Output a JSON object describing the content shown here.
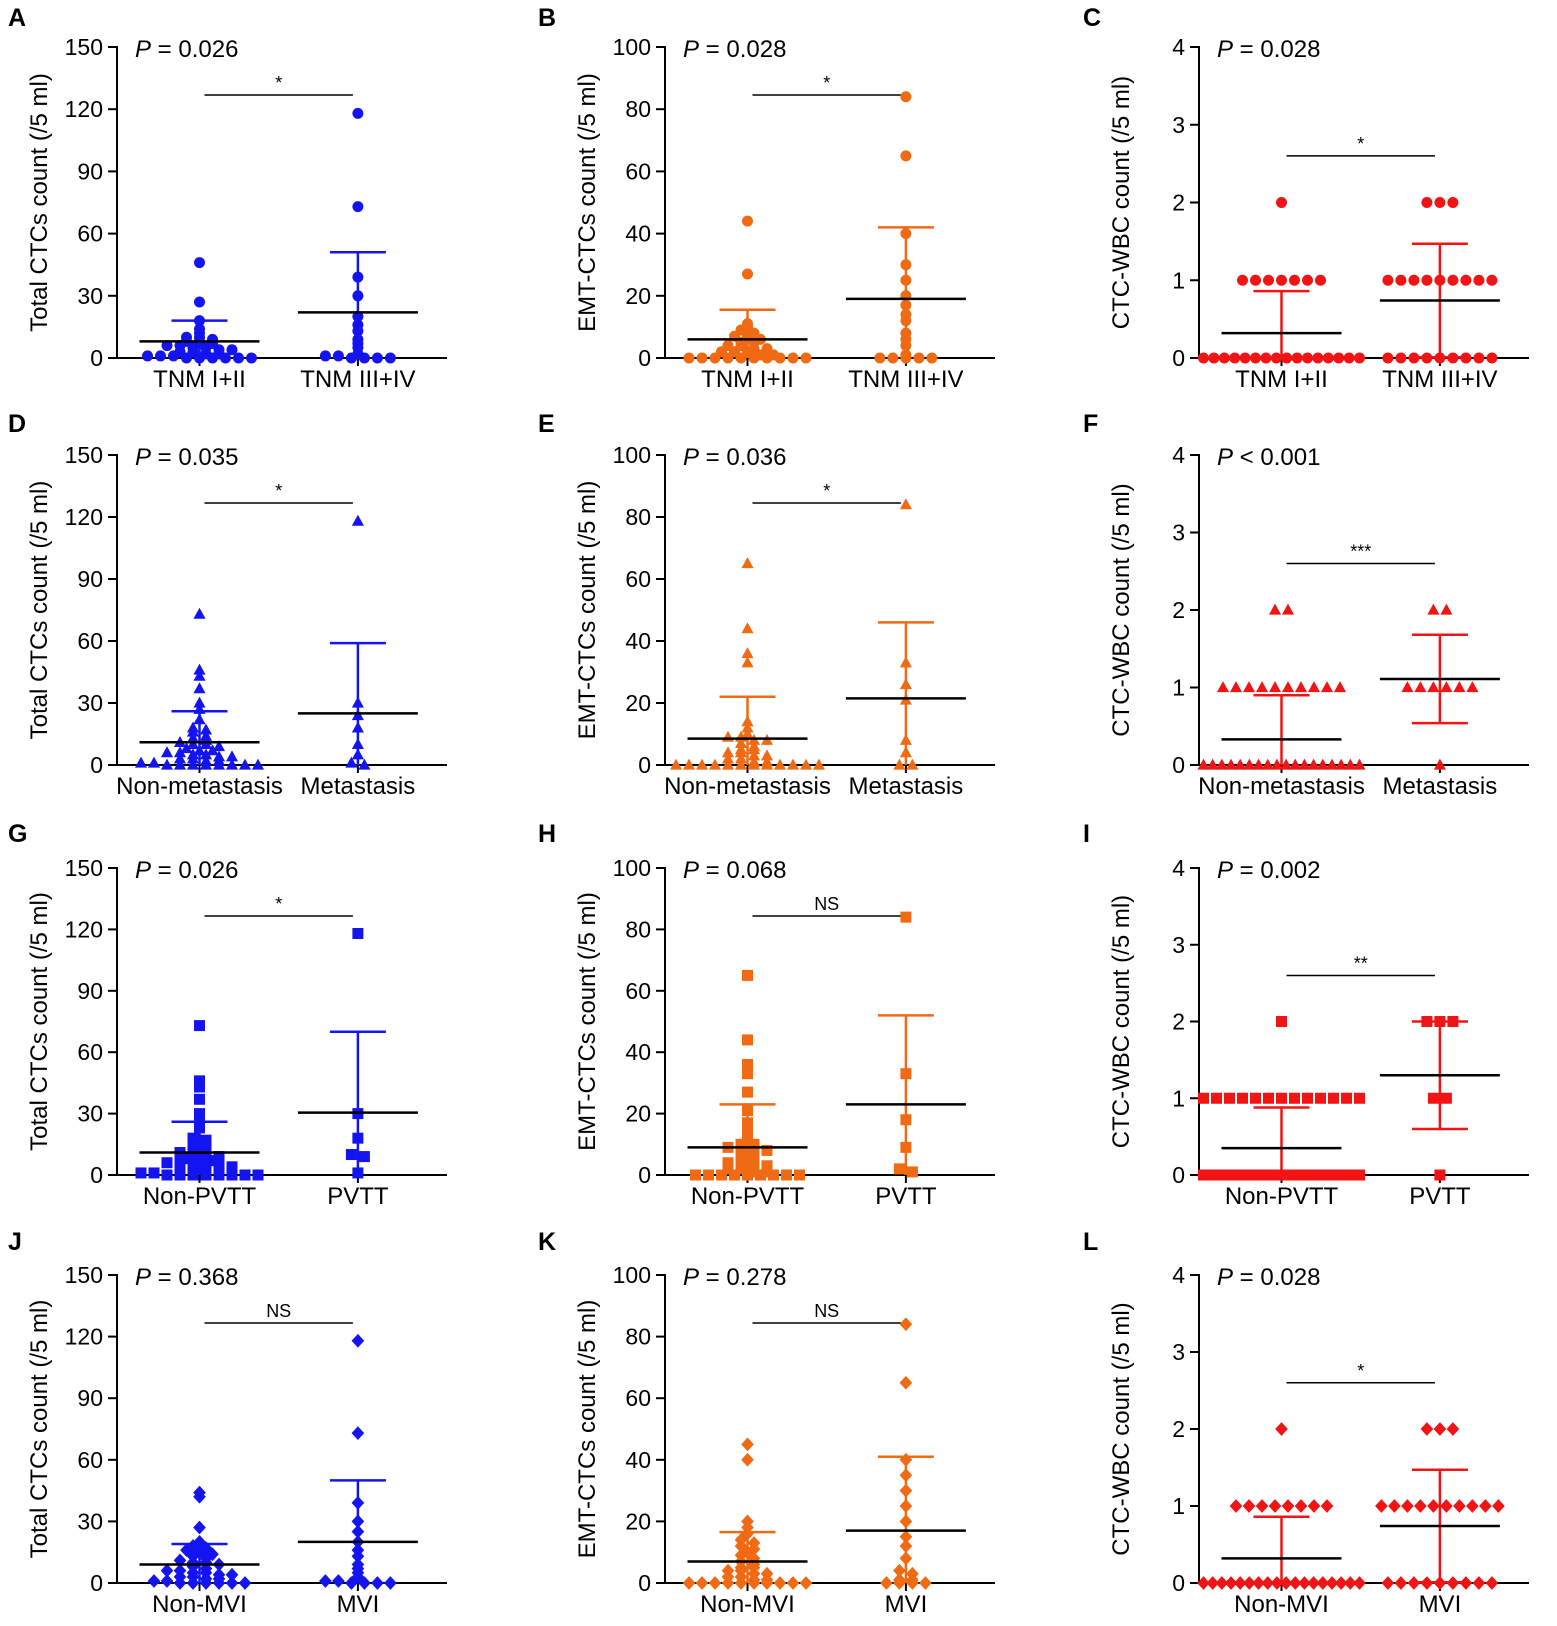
{
  "figure": "Scatter dot plots of CTC counts by clinical group",
  "chart_data": [
    {
      "id": "A",
      "type": "scatter",
      "letter": "A",
      "ylabel": "Total CTCs count (/5 ml)",
      "ylim": [
        0,
        150
      ],
      "yticks": [
        "0",
        "30",
        "60",
        "90",
        "120",
        "150"
      ],
      "color": "#1414f0",
      "marker": "circle",
      "p_value": "P = 0.026",
      "p_prefix": "P",
      "p_rest": " = 0.026",
      "significance": "*",
      "categories": [
        "TNM I+II",
        "TNM III+IV"
      ],
      "groups": [
        {
          "name": "TNM I+II",
          "mean": 8,
          "sd_upper": 18,
          "points": [
            46,
            27,
            18,
            14,
            12,
            10,
            10,
            9,
            8,
            8,
            7,
            6,
            6,
            5,
            5,
            4,
            4,
            3,
            3,
            2,
            2,
            1,
            1,
            1,
            0,
            0,
            0,
            0,
            0,
            0
          ]
        },
        {
          "name": "TNM III+IV",
          "mean": 22,
          "sd_upper": 51,
          "points": [
            118,
            73,
            39,
            30,
            20,
            16,
            13,
            9,
            7,
            5,
            2,
            1,
            1,
            0,
            0,
            0,
            0
          ]
        }
      ]
    },
    {
      "id": "B",
      "type": "scatter",
      "letter": "B",
      "ylabel": "EMT-CTCs count (/5 ml)",
      "ylim": [
        0,
        100
      ],
      "yticks": [
        "0",
        "20",
        "40",
        "60",
        "80",
        "100"
      ],
      "color": "#f06a14",
      "marker": "circle",
      "p_value": "P = 0.028",
      "p_prefix": "P",
      "p_rest": " = 0.028",
      "significance": "*",
      "categories": [
        "TNM I+II",
        "TNM III+IV"
      ],
      "groups": [
        {
          "name": "TNM I+II",
          "mean": 6,
          "sd_upper": 15.5,
          "points": [
            44,
            27,
            11,
            10,
            9,
            8,
            7,
            7,
            6,
            5,
            5,
            4,
            4,
            3,
            3,
            2,
            2,
            2,
            1,
            1,
            0,
            0,
            0,
            0,
            0,
            0,
            0,
            0,
            0,
            0
          ]
        },
        {
          "name": "TNM III+IV",
          "mean": 19,
          "sd_upper": 42,
          "points": [
            84,
            65,
            40,
            30,
            25,
            20,
            17,
            14,
            12,
            8,
            6,
            4,
            1,
            0,
            0,
            0,
            0,
            0
          ]
        }
      ]
    },
    {
      "id": "C",
      "type": "scatter",
      "letter": "C",
      "ylabel": "CTC-WBC count (/5 ml)",
      "ylim": [
        0,
        4
      ],
      "yticks": [
        "0",
        "1",
        "2",
        "3",
        "4"
      ],
      "color": "#f01414",
      "marker": "circle",
      "p_value": "P = 0.028",
      "p_prefix": "P",
      "p_rest": " = 0.028",
      "significance": "*",
      "categories": [
        "TNM I+II",
        "TNM III+IV"
      ],
      "groups": [
        {
          "name": "TNM I+II",
          "mean": 0.32,
          "sd_upper": 0.86,
          "points": [
            2,
            1,
            1,
            1,
            1,
            1,
            1,
            1,
            0,
            0,
            0,
            0,
            0,
            0,
            0,
            0,
            0,
            0,
            0,
            0,
            0,
            0,
            0,
            0
          ]
        },
        {
          "name": "TNM III+IV",
          "mean": 0.74,
          "sd_upper": 1.47,
          "points": [
            2,
            2,
            2,
            1,
            1,
            1,
            1,
            1,
            1,
            1,
            1,
            1,
            0,
            0,
            0,
            0,
            0,
            0,
            0,
            0,
            0
          ]
        }
      ]
    },
    {
      "id": "D",
      "type": "scatter",
      "letter": "D",
      "ylabel": "Total CTCs count (/5 ml)",
      "ylim": [
        0,
        150
      ],
      "yticks": [
        "0",
        "30",
        "60",
        "90",
        "120",
        "150"
      ],
      "color": "#1414f0",
      "marker": "triangle",
      "p_value": "P = 0.035",
      "p_prefix": "P",
      "p_rest": " = 0.035",
      "significance": "*",
      "categories": [
        "Non-metastasis",
        "Metastasis"
      ],
      "groups": [
        {
          "name": "Non-metastasis",
          "mean": 11,
          "sd_upper": 26,
          "points": [
            73,
            46,
            43,
            37,
            30,
            27,
            22,
            18,
            17,
            16,
            14,
            13,
            12,
            11,
            10,
            10,
            9,
            8,
            7,
            7,
            6,
            6,
            5,
            5,
            4,
            4,
            3,
            3,
            2,
            2,
            1,
            1,
            0,
            0,
            0,
            0,
            0,
            0,
            0,
            0
          ]
        },
        {
          "name": "Metastasis",
          "mean": 25,
          "sd_upper": 59,
          "points": [
            118,
            30,
            24,
            18,
            10,
            5,
            1,
            0
          ]
        }
      ]
    },
    {
      "id": "E",
      "type": "scatter",
      "letter": "E",
      "ylabel": "EMT-CTCs count (/5 ml)",
      "ylim": [
        0,
        100
      ],
      "yticks": [
        "0",
        "20",
        "40",
        "60",
        "80",
        "100"
      ],
      "color": "#f06a14",
      "marker": "triangle",
      "p_value": "P = 0.036",
      "p_prefix": "P",
      "p_rest": " = 0.036",
      "significance": "*",
      "categories": [
        "Non-metastasis",
        "Metastasis"
      ],
      "groups": [
        {
          "name": "Non-metastasis",
          "mean": 8.5,
          "sd_upper": 22,
          "points": [
            65,
            44,
            36,
            33,
            14,
            12,
            10,
            9,
            9,
            8,
            8,
            7,
            6,
            5,
            5,
            4,
            4,
            3,
            3,
            2,
            2,
            1,
            1,
            0,
            0,
            0,
            0,
            0,
            0,
            0,
            0,
            0,
            0,
            0,
            0
          ]
        },
        {
          "name": "Metastasis",
          "mean": 21.5,
          "sd_upper": 46,
          "points": [
            84,
            33,
            26,
            21,
            8,
            4,
            0,
            0
          ]
        }
      ]
    },
    {
      "id": "F",
      "type": "scatter",
      "letter": "F",
      "ylabel": "CTC-WBC count (/5 ml)",
      "ylim": [
        0,
        4
      ],
      "yticks": [
        "0",
        "1",
        "2",
        "3",
        "4"
      ],
      "color": "#f01414",
      "marker": "triangle",
      "p_value": "P < 0.001",
      "p_prefix": "P",
      "p_rest": " < 0.001",
      "significance": "***",
      "categories": [
        "Non-metastasis",
        "Metastasis"
      ],
      "groups": [
        {
          "name": "Non-metastasis",
          "mean": 0.33,
          "sd_upper": 0.9,
          "points": [
            2,
            2,
            1,
            1,
            1,
            1,
            1,
            1,
            1,
            1,
            1,
            1,
            0,
            0,
            0,
            0,
            0,
            0,
            0,
            0,
            0,
            0,
            0,
            0,
            0,
            0,
            0,
            0,
            0,
            0
          ]
        },
        {
          "name": "Metastasis",
          "mean": 1.11,
          "sd_upper": 1.68,
          "points": [
            2,
            2,
            1,
            1,
            1,
            1,
            1,
            1,
            0
          ]
        }
      ]
    },
    {
      "id": "G",
      "type": "scatter",
      "letter": "G",
      "ylabel": "Total CTCs count (/5 ml)",
      "ylim": [
        0,
        150
      ],
      "yticks": [
        "0",
        "30",
        "60",
        "90",
        "120",
        "150"
      ],
      "color": "#1414f0",
      "marker": "square",
      "p_value": "P = 0.026",
      "p_prefix": "P",
      "p_rest": " = 0.026",
      "significance": "*",
      "categories": [
        "Non-PVTT",
        "PVTT"
      ],
      "groups": [
        {
          "name": "Non-PVTT",
          "mean": 11,
          "sd_upper": 26,
          "points": [
            73,
            46,
            43,
            37,
            30,
            27,
            23,
            18,
            17,
            16,
            14,
            13,
            12,
            11,
            10,
            10,
            9,
            8,
            7,
            7,
            6,
            6,
            5,
            5,
            4,
            4,
            3,
            3,
            2,
            2,
            1,
            1,
            0,
            0,
            0,
            0,
            0,
            0,
            0,
            0
          ]
        },
        {
          "name": "PVTT",
          "mean": 30.5,
          "sd_upper": 70,
          "points": [
            118,
            30,
            18,
            10,
            9,
            1
          ]
        }
      ]
    },
    {
      "id": "H",
      "type": "scatter",
      "letter": "H",
      "ylabel": "EMT-CTCs count (/5 ml)",
      "ylim": [
        0,
        100
      ],
      "yticks": [
        "0",
        "20",
        "40",
        "60",
        "80",
        "100"
      ],
      "color": "#f06a14",
      "marker": "square",
      "p_value": "P = 0.068",
      "p_prefix": "P",
      "p_rest": " = 0.068",
      "significance": "NS",
      "categories": [
        "Non-PVTT",
        "PVTT"
      ],
      "groups": [
        {
          "name": "Non-PVTT",
          "mean": 9,
          "sd_upper": 23,
          "points": [
            65,
            44,
            36,
            33,
            27,
            21,
            17,
            14,
            12,
            10,
            10,
            9,
            9,
            8,
            8,
            7,
            6,
            5,
            5,
            4,
            4,
            3,
            3,
            2,
            2,
            1,
            1,
            0,
            0,
            0,
            0,
            0,
            0,
            0,
            0,
            0
          ]
        },
        {
          "name": "PVTT",
          "mean": 23,
          "sd_upper": 52,
          "points": [
            84,
            33,
            18,
            9,
            2,
            1
          ]
        }
      ]
    },
    {
      "id": "I",
      "type": "scatter",
      "letter": "I",
      "ylabel": "CTC-WBC count (/5 ml)",
      "ylim": [
        0,
        4
      ],
      "yticks": [
        "0",
        "1",
        "2",
        "3",
        "4"
      ],
      "color": "#f01414",
      "marker": "square",
      "p_value": "P = 0.002",
      "p_prefix": "P",
      "p_rest": " = 0.002",
      "significance": "**",
      "categories": [
        "Non-PVTT",
        "PVTT"
      ],
      "groups": [
        {
          "name": "Non-PVTT",
          "mean": 0.35,
          "sd_upper": 0.88,
          "points": [
            2,
            1,
            1,
            1,
            1,
            1,
            1,
            1,
            1,
            1,
            1,
            1,
            1,
            1,
            0,
            0,
            0,
            0,
            0,
            0,
            0,
            0,
            0,
            0,
            0,
            0,
            0,
            0,
            0,
            0,
            0,
            0,
            0,
            0,
            0
          ]
        },
        {
          "name": "PVTT",
          "mean": 1.3,
          "sd_upper": 2.0,
          "points": [
            2,
            2,
            2,
            1,
            1,
            0
          ]
        }
      ]
    },
    {
      "id": "J",
      "type": "scatter",
      "letter": "J",
      "ylabel": "Total CTCs count (/5 ml)",
      "ylim": [
        0,
        150
      ],
      "yticks": [
        "0",
        "30",
        "60",
        "90",
        "120",
        "150"
      ],
      "color": "#1414f0",
      "marker": "diamond",
      "p_value": "P = 0.368",
      "p_prefix": "P",
      "p_rest": " = 0.368",
      "significance": "NS",
      "categories": [
        "Non-MVI",
        "MVI"
      ],
      "groups": [
        {
          "name": "Non-MVI",
          "mean": 9,
          "sd_upper": 19,
          "points": [
            44,
            42,
            27,
            20,
            18,
            17,
            16,
            15,
            14,
            13,
            12,
            11,
            10,
            10,
            9,
            8,
            7,
            6,
            6,
            5,
            5,
            4,
            4,
            3,
            3,
            2,
            2,
            1,
            1,
            0,
            0,
            0,
            0,
            0,
            0
          ]
        },
        {
          "name": "MVI",
          "mean": 20,
          "sd_upper": 50,
          "points": [
            118,
            73,
            39,
            30,
            25,
            20,
            16,
            13,
            9,
            7,
            5,
            3,
            1,
            1,
            0,
            0,
            0,
            0
          ]
        }
      ]
    },
    {
      "id": "K",
      "type": "scatter",
      "letter": "K",
      "ylabel": "EMT-CTCs count (/5 ml)",
      "ylim": [
        0,
        100
      ],
      "yticks": [
        "0",
        "20",
        "40",
        "60",
        "80",
        "100"
      ],
      "color": "#f06a14",
      "marker": "diamond",
      "p_value": "P = 0.278",
      "p_prefix": "P",
      "p_rest": " = 0.278",
      "significance": "NS",
      "categories": [
        "Non-MVI",
        "MVI"
      ],
      "groups": [
        {
          "name": "Non-MVI",
          "mean": 7,
          "sd_upper": 16.5,
          "points": [
            45,
            40,
            20,
            18,
            16,
            14,
            13,
            12,
            11,
            10,
            9,
            8,
            7,
            6,
            5,
            5,
            4,
            4,
            3,
            3,
            2,
            2,
            1,
            1,
            0,
            0,
            0,
            0,
            0,
            0,
            0,
            0,
            0,
            0
          ]
        },
        {
          "name": "MVI",
          "mean": 17,
          "sd_upper": 41,
          "points": [
            84,
            65,
            40,
            35,
            30,
            25,
            20,
            15,
            12,
            8,
            4,
            3,
            1,
            1,
            0,
            0,
            0,
            0
          ]
        }
      ]
    },
    {
      "id": "L",
      "type": "scatter",
      "letter": "L",
      "ylabel": "CTC-WBC count (/5 ml)",
      "ylim": [
        0,
        4
      ],
      "yticks": [
        "0",
        "1",
        "2",
        "3",
        "4"
      ],
      "color": "#f01414",
      "marker": "diamond",
      "p_value": "P = 0.028",
      "p_prefix": "P",
      "p_rest": " = 0.028",
      "significance": "*",
      "categories": [
        "Non-MVI",
        "MVI"
      ],
      "groups": [
        {
          "name": "Non-MVI",
          "mean": 0.32,
          "sd_upper": 0.86,
          "points": [
            2,
            1,
            1,
            1,
            1,
            1,
            1,
            1,
            1,
            0,
            0,
            0,
            0,
            0,
            0,
            0,
            0,
            0,
            0,
            0,
            0,
            0,
            0,
            0,
            0,
            0,
            0
          ]
        },
        {
          "name": "MVI",
          "mean": 0.74,
          "sd_upper": 1.47,
          "points": [
            2,
            2,
            2,
            1,
            1,
            1,
            1,
            1,
            1,
            1,
            1,
            1,
            1,
            0,
            0,
            0,
            0,
            0,
            0,
            0,
            0,
            0
          ]
        }
      ]
    }
  ]
}
